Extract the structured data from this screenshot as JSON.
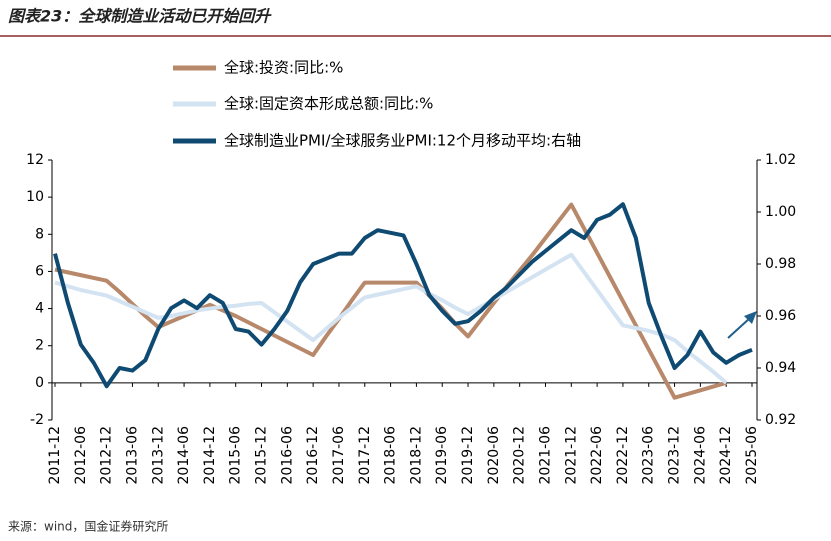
{
  "chart_data": {
    "type": "line",
    "title": "图表23：全球制造业活动已开始回升",
    "source": "来源：wind，国金证券研究所",
    "categories": [
      "2011-12",
      null,
      "2012-06",
      null,
      "2012-12",
      null,
      "2013-06",
      null,
      "2013-12",
      null,
      "2014-06",
      null,
      "2014-12",
      null,
      "2015-06",
      null,
      "2015-12",
      null,
      "2016-06",
      null,
      "2016-12",
      null,
      "2017-06",
      null,
      "2017-12",
      null,
      "2018-06",
      null,
      "2018-12",
      null,
      "2019-06",
      null,
      "2019-12",
      null,
      "2020-06",
      null,
      "2020-12",
      null,
      "2021-06",
      null,
      "2021-12",
      null,
      "2022-06",
      null,
      "2022-12",
      null,
      "2023-06",
      null,
      "2023-12",
      null,
      "2024-06",
      null,
      "2024-12",
      null,
      "2025-06"
    ],
    "series": [
      {
        "name": "全球:投资:同比:%",
        "color": "#b8886a",
        "values": [
          6.1,
          5.95,
          5.8,
          5.65,
          5.5,
          4.9,
          4.25,
          3.6,
          3.0,
          3.3,
          3.6,
          3.9,
          4.2,
          3.9,
          3.6,
          3.25,
          2.9,
          2.55,
          2.2,
          1.85,
          1.5,
          2.5,
          3.45,
          4.45,
          5.4,
          5.4,
          5.4,
          5.4,
          5.4,
          4.7,
          4.0,
          3.2,
          2.5,
          3.4,
          4.3,
          5.2,
          6.05,
          6.9,
          7.8,
          8.7,
          9.6,
          8.3,
          7.0,
          5.7,
          4.4,
          3.1,
          1.8,
          0.5,
          -0.8,
          -0.6,
          -0.4,
          -0.2,
          0,
          null,
          null
        ]
      },
      {
        "name": "全球:固定资本形成总额:同比:%",
        "color": "#d3e3f2",
        "values": [
          5.4,
          5.2,
          5.0,
          4.85,
          4.7,
          4.4,
          4.1,
          3.8,
          3.5,
          3.6,
          3.75,
          3.9,
          4.0,
          4.1,
          4.15,
          4.25,
          4.3,
          3.8,
          3.3,
          2.8,
          2.3,
          2.9,
          3.5,
          4.05,
          4.6,
          4.75,
          4.9,
          5.05,
          5.2,
          4.8,
          4.45,
          4.05,
          3.7,
          4.1,
          4.5,
          4.9,
          5.3,
          5.7,
          6.1,
          6.5,
          6.9,
          5.95,
          5.0,
          4.05,
          3.1,
          2.95,
          2.8,
          2.6,
          2.3,
          1.7,
          1.15,
          0.6,
          0,
          null,
          null
        ]
      },
      {
        "name": "全球制造业PMI/全球服务业PMI:12个月移动平均:右轴",
        "color": "#0f4a72",
        "axis": "y2",
        "values": [
          0.984,
          0.965,
          0.949,
          0.942,
          0.933,
          0.94,
          0.939,
          0.943,
          0.955,
          0.963,
          0.966,
          0.963,
          0.968,
          0.965,
          0.955,
          0.954,
          0.949,
          0.955,
          0.962,
          0.973,
          0.98,
          0.982,
          0.984,
          0.984,
          0.99,
          0.993,
          0.992,
          0.991,
          0.98,
          0.968,
          0.962,
          0.957,
          0.958,
          0.962,
          0.967,
          0.971,
          0.976,
          0.981,
          0.985,
          0.989,
          0.993,
          0.99,
          0.997,
          0.999,
          1.003,
          0.99,
          0.965,
          0.952,
          0.94,
          0.945,
          0.954,
          0.946,
          0.942,
          0.945,
          0.947
        ]
      }
    ],
    "ylim": [
      -2,
      12
    ],
    "yticks": [
      -2,
      0,
      2,
      4,
      6,
      8,
      10,
      12
    ],
    "y2lim": [
      0.92,
      1.02
    ],
    "y2ticks": [
      0.92,
      0.94,
      0.96,
      0.98,
      {
        "value": 1,
        "label": "1.00"
      },
      1.02
    ]
  }
}
